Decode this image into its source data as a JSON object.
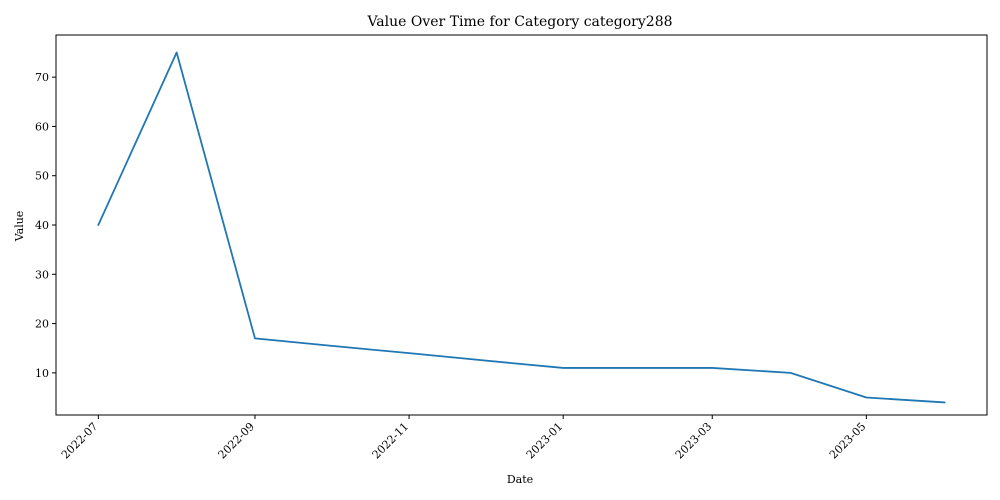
{
  "chart_data": {
    "type": "line",
    "title": "Value Over Time for Category category288",
    "xlabel": "Date",
    "ylabel": "Value",
    "x_ticks": [
      "2022-07",
      "2022-09",
      "2022-11",
      "2023-01",
      "2023-03",
      "2023-05"
    ],
    "y_ticks": [
      10,
      20,
      30,
      40,
      50,
      60,
      70
    ],
    "ylim": [
      1.45,
      78.55
    ],
    "grid": false,
    "legend": "none",
    "series": [
      {
        "color": "#1f77b4",
        "x": [
          "2022-07-01",
          "2022-08-01",
          "2022-09-01",
          "2022-10-01",
          "2022-11-01",
          "2022-12-01",
          "2023-01-01",
          "2023-02-01",
          "2023-03-01",
          "2023-04-01",
          "2023-05-01",
          "2023-06-01"
        ],
        "y": [
          40,
          75,
          17,
          15.5,
          14,
          12.5,
          11,
          11,
          11,
          10,
          5,
          4
        ]
      }
    ]
  }
}
